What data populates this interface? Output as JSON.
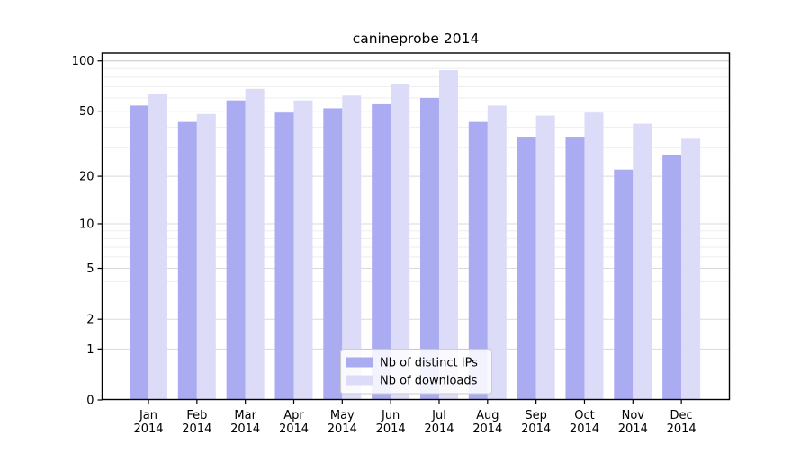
{
  "chart_data": {
    "type": "bar",
    "title": "canineprobe 2014",
    "categories": [
      "Jan 2014",
      "Feb 2014",
      "Mar 2014",
      "Apr 2014",
      "May 2014",
      "Jun 2014",
      "Jul 2014",
      "Aug 2014",
      "Sep 2014",
      "Oct 2014",
      "Nov 2014",
      "Dec 2014"
    ],
    "series": [
      {
        "name": "Nb of distinct IPs",
        "color": "#ababf2",
        "values": [
          54,
          43,
          58,
          49,
          52,
          55,
          60,
          43,
          35,
          35,
          22,
          27
        ]
      },
      {
        "name": "Nb of downloads",
        "color": "#dcdcf8",
        "values": [
          63,
          48,
          68,
          58,
          62,
          73,
          88,
          54,
          47,
          49,
          42,
          34
        ]
      }
    ],
    "xlabel": "",
    "ylabel": "",
    "yscale": "symlog",
    "yticks": [
      100,
      50,
      20,
      10,
      5,
      2,
      1,
      0
    ],
    "minor_gridlines": [
      3,
      4,
      6,
      7,
      8,
      9,
      30,
      40,
      60,
      70,
      80,
      90
    ],
    "ylim": [
      0,
      113
    ],
    "grid": true,
    "legend_position": "lower center"
  },
  "colors": {
    "grid_minor": "#eeeeee",
    "grid_major": "#dadada",
    "grid_top": "#c4c4c4",
    "spine": "#000000",
    "legend_border": "#cccccc",
    "legend_bg": "rgba(255,255,255,0.85)"
  }
}
